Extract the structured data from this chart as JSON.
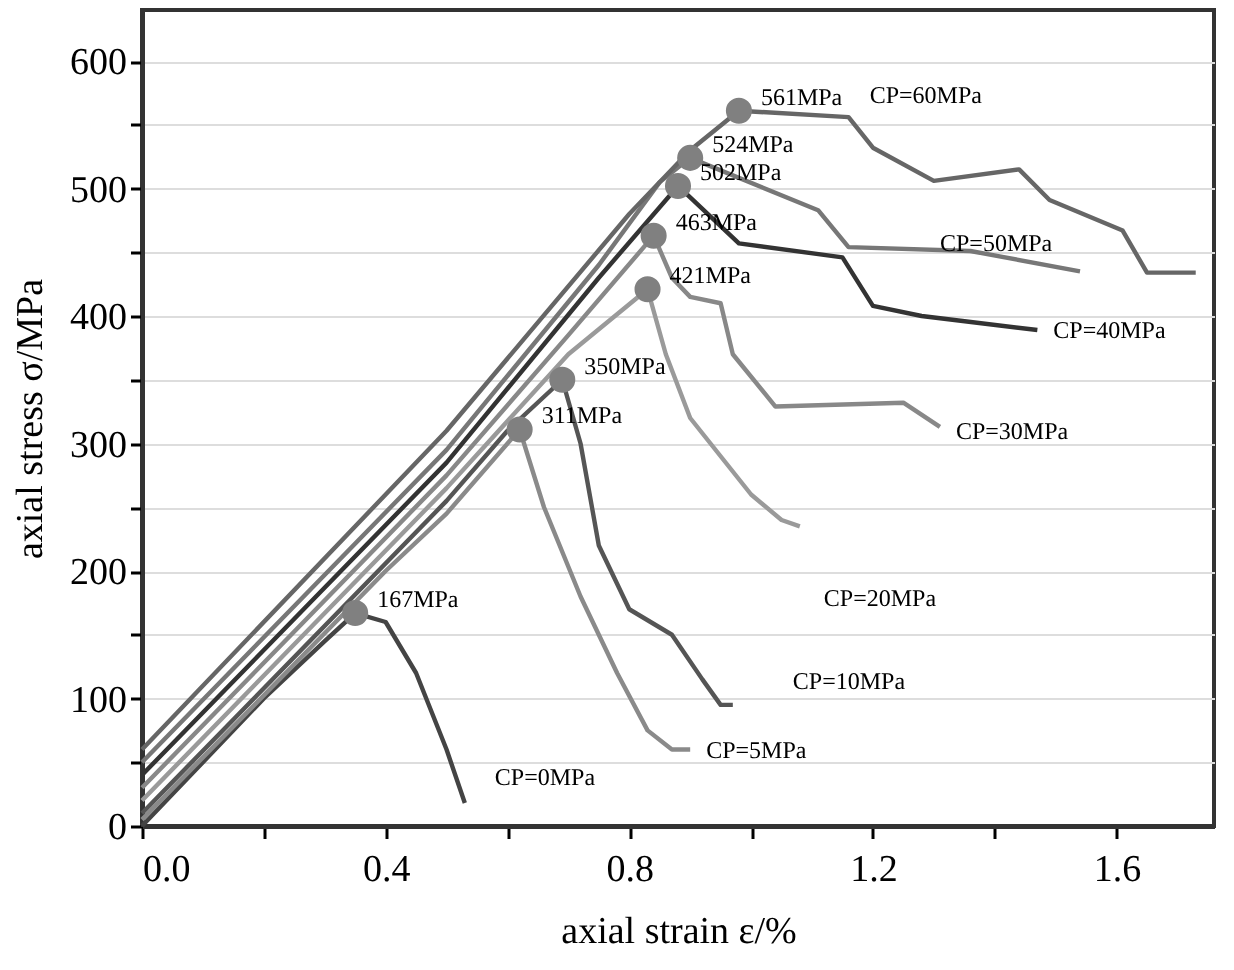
{
  "chart_data": {
    "type": "line",
    "xlabel": "axial strain ε/%",
    "ylabel": "axial stress σ/MPa",
    "xlim": [
      0,
      1.76
    ],
    "ylim": [
      0,
      640
    ],
    "xticks": [
      {
        "value": 0,
        "label": "0.0"
      },
      {
        "value": 0.2,
        "label": null
      },
      0.4,
      {
        "value": 0.6,
        "label": null
      },
      0.8,
      {
        "value": 1.0,
        "label": null
      },
      1.2,
      {
        "value": 1.4,
        "label": null
      },
      1.6
    ],
    "yticks": [
      0,
      {
        "value": 50,
        "label": null
      },
      100,
      {
        "value": 150,
        "label": null
      },
      200,
      {
        "value": 250,
        "label": null
      },
      300,
      {
        "value": 350,
        "label": null
      },
      400,
      {
        "value": 450,
        "label": null
      },
      500,
      {
        "value": 550,
        "label": null
      },
      600
    ],
    "grid": "y",
    "line_style": "solid",
    "series": [
      {
        "name": "CP=0MPa",
        "color": "#444444",
        "x": [
          0,
          0.2,
          0.3,
          0.35,
          0.4,
          0.45,
          0.5,
          0.53
        ],
        "values": [
          0,
          100,
          145,
          167,
          160,
          120,
          60,
          18
        ]
      },
      {
        "name": "CP=5MPa",
        "color": "#8a8a8a",
        "x": [
          0,
          0.4,
          0.5,
          0.62,
          0.66,
          0.72,
          0.78,
          0.83,
          0.87,
          0.9
        ],
        "values": [
          5,
          200,
          245,
          311,
          250,
          180,
          120,
          75,
          60,
          60
        ]
      },
      {
        "name": "CP=10MPa",
        "color": "#555555",
        "x": [
          0,
          0.5,
          0.6,
          0.69,
          0.72,
          0.75,
          0.8,
          0.87,
          0.92,
          0.95,
          0.97
        ],
        "values": [
          10,
          255,
          310,
          350,
          300,
          220,
          170,
          150,
          115,
          95,
          95
        ]
      },
      {
        "name": "CP=20MPa",
        "color": "#9a9a9a",
        "x": [
          0,
          0.5,
          0.7,
          0.83,
          0.86,
          0.9,
          0.95,
          1.0,
          1.05,
          1.08
        ],
        "values": [
          20,
          265,
          370,
          421,
          370,
          320,
          290,
          260,
          240,
          235
        ]
      },
      {
        "name": "CP=30MPa",
        "color": "#888888",
        "x": [
          0,
          0.5,
          0.7,
          0.84,
          0.87,
          0.9,
          0.95,
          0.97,
          1.04,
          1.25,
          1.31
        ],
        "values": [
          30,
          275,
          385,
          463,
          430,
          415,
          410,
          370,
          329,
          332,
          313
        ]
      },
      {
        "name": "CP=40MPa",
        "color": "#333333",
        "x": [
          0,
          0.5,
          0.75,
          0.88,
          0.98,
          1.15,
          1.2,
          1.28,
          1.47
        ],
        "values": [
          40,
          285,
          430,
          502,
          457,
          446,
          408,
          400,
          389
        ]
      },
      {
        "name": "CP=50MPa",
        "color": "#777777",
        "x": [
          0,
          0.5,
          0.75,
          0.85,
          0.9,
          1.11,
          1.16,
          1.36,
          1.54
        ],
        "values": [
          50,
          295,
          440,
          505,
          524,
          483,
          454,
          451,
          435
        ]
      },
      {
        "name": "CP=60MPa",
        "color": "#666666",
        "x": [
          0,
          0.5,
          0.8,
          0.9,
          0.98,
          1.16,
          1.2,
          1.3,
          1.44,
          1.49,
          1.61,
          1.65,
          1.73
        ],
        "values": [
          60,
          310,
          480,
          530,
          561,
          556,
          532,
          506,
          515,
          491,
          467,
          434,
          434
        ]
      },
      {
        "type": "scatter",
        "marker": "circle",
        "color": "#808080",
        "x": [
          0.35,
          0.62,
          0.69,
          0.83,
          0.84,
          0.88,
          0.9,
          0.98
        ],
        "values": [
          167,
          311,
          350,
          421,
          463,
          502,
          524,
          561
        ],
        "value_labels": [
          "167MPa",
          "311MPa",
          "350MPa",
          "421MPa",
          "463MPa",
          "502MPa",
          "524MPa",
          "561MPa"
        ]
      }
    ]
  }
}
